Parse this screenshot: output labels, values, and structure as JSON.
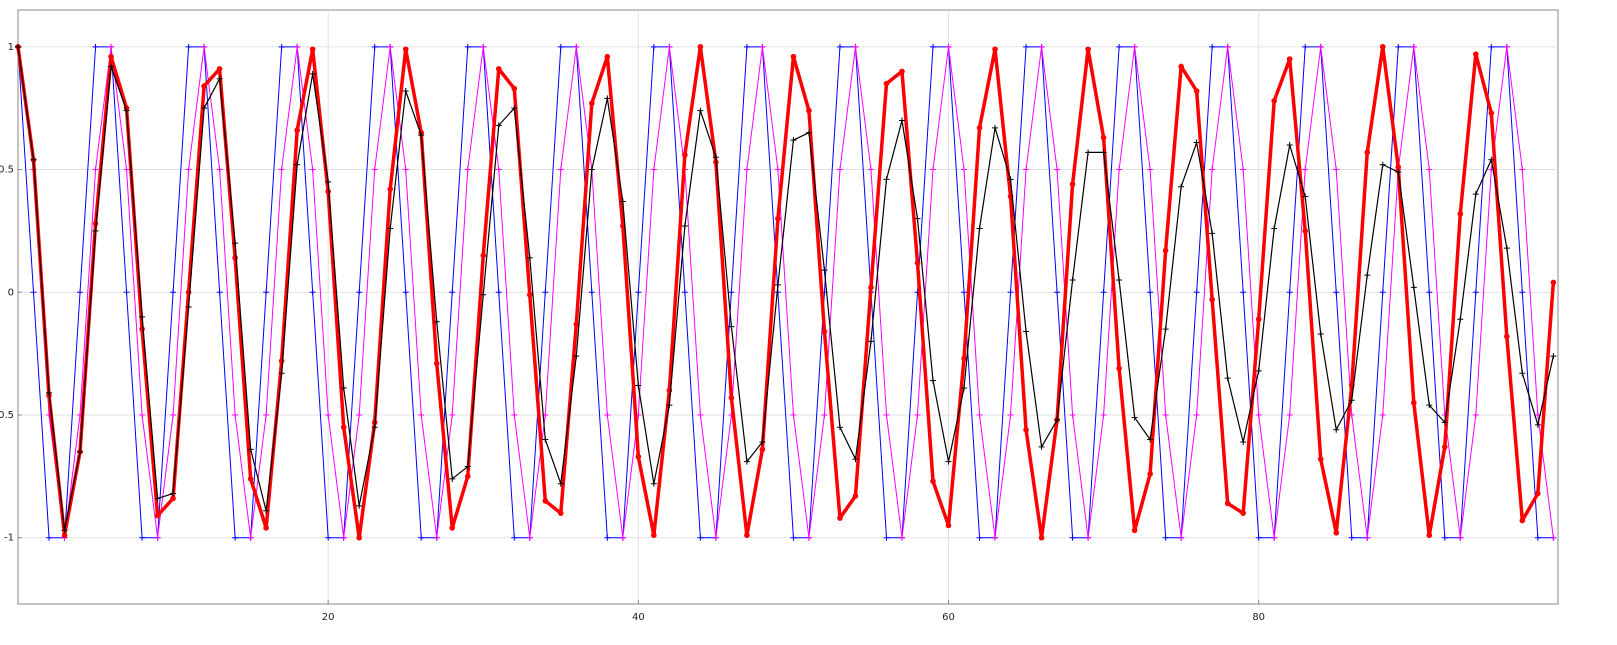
{
  "chart_data": {
    "type": "line",
    "x": [
      0,
      1,
      2,
      3,
      4,
      5,
      6,
      7,
      8,
      9,
      10,
      11,
      12,
      13,
      14,
      15,
      16,
      17,
      18,
      19,
      20,
      21,
      22,
      23,
      24,
      25,
      26,
      27,
      28,
      29,
      30,
      31,
      32,
      33,
      34,
      35,
      36,
      37,
      38,
      39,
      40,
      41,
      42,
      43,
      44,
      45,
      46,
      47,
      48,
      49,
      50,
      51,
      52,
      53,
      54,
      55,
      56,
      57,
      58,
      59,
      60,
      61,
      62,
      63,
      64,
      65,
      66,
      67,
      68,
      69,
      70,
      71,
      72,
      73,
      74,
      75,
      76,
      77,
      78,
      79,
      80,
      81,
      82,
      83,
      84,
      85,
      86,
      87,
      88,
      89,
      90,
      91,
      92,
      93,
      94,
      95,
      96,
      97,
      98,
      99
    ],
    "series": [
      {
        "color": "#0000ff",
        "marker": "+",
        "line_width": 1,
        "values": [
          1,
          0,
          -1,
          -1,
          0,
          1,
          1,
          0,
          -1,
          -1,
          0,
          1,
          1,
          0,
          -1,
          -1,
          0,
          1,
          1,
          0,
          -1,
          -1,
          0,
          1,
          1,
          0,
          -1,
          -1,
          0,
          1,
          1,
          0,
          -1,
          -1,
          0,
          1,
          1,
          0,
          -1,
          -1,
          0,
          1,
          1,
          0,
          -1,
          -1,
          0,
          1,
          1,
          0,
          -1,
          -1,
          0,
          1,
          1,
          0,
          -1,
          -1,
          0,
          1,
          1,
          0,
          -1,
          -1,
          0,
          1,
          1,
          0,
          -1,
          -1,
          0,
          1,
          1,
          0,
          -1,
          -1,
          0,
          1,
          1,
          0,
          -1,
          -1,
          0,
          1,
          1,
          0,
          -1,
          -1,
          0,
          1,
          1,
          0,
          -1,
          -1,
          0,
          1,
          1,
          0,
          -1,
          -1
        ]
      },
      {
        "color": "#ff00ff",
        "marker": "+",
        "line_width": 1,
        "values": [
          1,
          0.5,
          -0.5,
          -1,
          -0.5,
          0.5,
          1,
          0.5,
          -0.5,
          -1,
          -0.5,
          0.5,
          1,
          0.5,
          -0.5,
          -1,
          -0.5,
          0.5,
          1,
          0.5,
          -0.5,
          -1,
          -0.5,
          0.5,
          1,
          0.5,
          -0.5,
          -1,
          -0.5,
          0.5,
          1,
          0.5,
          -0.5,
          -1,
          -0.5,
          0.5,
          1,
          0.5,
          -0.5,
          -1,
          -0.5,
          0.5,
          1,
          0.5,
          -0.5,
          -1,
          -0.5,
          0.5,
          1,
          0.5,
          -0.5,
          -1,
          -0.5,
          0.5,
          1,
          0.5,
          -0.5,
          -1,
          -0.5,
          0.5,
          1,
          0.5,
          -0.5,
          -1,
          -0.5,
          0.5,
          1,
          0.5,
          -0.5,
          -1,
          -0.5,
          0.5,
          1,
          0.5,
          -0.5,
          -1,
          -0.5,
          0.5,
          1,
          0.5,
          -0.5,
          -1,
          -0.5,
          0.5,
          1,
          0.5,
          -0.5,
          -1,
          -0.5,
          0.5,
          1,
          0.5,
          -0.5,
          -1,
          -0.5,
          0.5,
          1,
          0.5,
          -0.5,
          -1
        ]
      },
      {
        "color": "#ff0000",
        "marker": "o",
        "line_width": 3.5,
        "values": [
          1.0,
          0.54,
          -0.42,
          -0.99,
          -0.65,
          0.28,
          0.96,
          0.75,
          -0.15,
          -0.91,
          -0.84,
          0.0,
          0.84,
          0.91,
          0.14,
          -0.76,
          -0.96,
          -0.28,
          0.66,
          0.99,
          0.41,
          -0.55,
          -1.0,
          -0.53,
          0.42,
          0.99,
          0.65,
          -0.29,
          -0.96,
          -0.75,
          0.15,
          0.91,
          0.83,
          -0.01,
          -0.85,
          -0.9,
          -0.13,
          0.77,
          0.96,
          0.27,
          -0.67,
          -0.99,
          -0.4,
          0.56,
          1.0,
          0.53,
          -0.43,
          -0.99,
          -0.64,
          0.3,
          0.96,
          0.74,
          -0.16,
          -0.92,
          -0.83,
          0.02,
          0.85,
          0.9,
          0.12,
          -0.77,
          -0.95,
          -0.27,
          0.67,
          0.99,
          0.39,
          -0.56,
          -1.0,
          -0.52,
          0.44,
          0.99,
          0.63,
          -0.31,
          -0.97,
          -0.74,
          0.17,
          0.92,
          0.82,
          -0.03,
          -0.86,
          -0.9,
          -0.11,
          0.78,
          0.95,
          0.25,
          -0.68,
          -0.98,
          -0.38,
          0.57,
          1.0,
          0.51,
          -0.45,
          -0.99,
          -0.63,
          0.32,
          0.97,
          0.73,
          -0.18,
          -0.93,
          -0.82,
          0.04
        ]
      },
      {
        "color": "#000000",
        "marker": "+",
        "line_width": 1.2,
        "values": [
          1.0,
          0.54,
          -0.41,
          -0.97,
          -0.65,
          0.25,
          0.92,
          0.74,
          -0.1,
          -0.84,
          -0.82,
          -0.06,
          0.75,
          0.87,
          0.2,
          -0.64,
          -0.89,
          -0.33,
          0.52,
          0.89,
          0.45,
          -0.39,
          -0.87,
          -0.55,
          0.26,
          0.82,
          0.64,
          -0.12,
          -0.76,
          -0.71,
          -0.01,
          0.68,
          0.75,
          0.14,
          -0.6,
          -0.78,
          -0.26,
          0.5,
          0.79,
          0.37,
          -0.38,
          -0.78,
          -0.46,
          0.27,
          0.74,
          0.55,
          -0.14,
          -0.69,
          -0.61,
          0.03,
          0.62,
          0.65,
          0.09,
          -0.55,
          -0.68,
          -0.2,
          0.46,
          0.7,
          0.3,
          -0.36,
          -0.69,
          -0.39,
          0.26,
          0.67,
          0.46,
          -0.16,
          -0.63,
          -0.52,
          0.05,
          0.57,
          0.57,
          0.05,
          -0.51,
          -0.6,
          -0.15,
          0.43,
          0.61,
          0.24,
          -0.35,
          -0.61,
          -0.32,
          0.26,
          0.6,
          0.39,
          -0.17,
          -0.56,
          -0.44,
          0.07,
          0.52,
          0.49,
          0.02,
          -0.46,
          -0.53,
          -0.11,
          0.4,
          0.54,
          0.18,
          -0.33,
          -0.54,
          -0.26
        ]
      }
    ],
    "xlim": [
      0,
      99.3
    ],
    "xticks": [
      20,
      40,
      60,
      80
    ],
    "ylim": [
      -1.27,
      1.15
    ],
    "yticks": [
      -1,
      -0.5,
      0,
      0.5,
      1
    ],
    "grid": true
  }
}
